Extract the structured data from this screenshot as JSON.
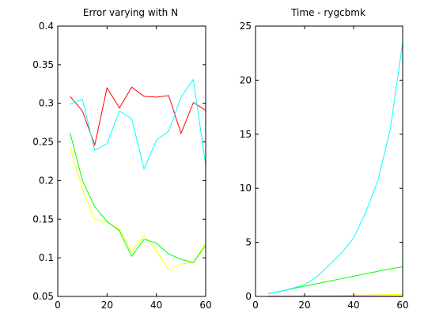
{
  "chart_data": [
    {
      "type": "line",
      "title": "Error varying with N",
      "xlabel": "",
      "ylabel": "",
      "xlim": [
        0,
        60
      ],
      "ylim": [
        0.05,
        0.4
      ],
      "xticks": [
        0,
        20,
        40,
        60
      ],
      "yticks": [
        0.05,
        0.1,
        0.15,
        0.2,
        0.25,
        0.3,
        0.35,
        0.4
      ],
      "yticklabels": [
        "0.05",
        "0.1",
        "0.15",
        "0.2",
        "0.25",
        "0.3",
        "0.35",
        "0.4"
      ],
      "grid": false,
      "x": [
        5,
        10,
        15,
        20,
        25,
        30,
        35,
        40,
        45,
        50,
        55,
        60
      ],
      "series": [
        {
          "color": "#ff0000",
          "values": [
            0.309,
            0.29,
            0.246,
            0.32,
            0.294,
            0.321,
            0.309,
            0.308,
            0.31,
            0.261,
            0.301,
            0.291
          ]
        },
        {
          "color": "#ffff00",
          "values": [
            0.243,
            0.189,
            0.15,
            0.146,
            0.137,
            0.108,
            0.129,
            0.109,
            0.084,
            0.092,
            0.094,
            0.119
          ]
        },
        {
          "color": "#00ff00",
          "values": [
            0.262,
            0.2,
            0.166,
            0.147,
            0.135,
            0.102,
            0.124,
            0.119,
            0.105,
            0.098,
            0.094,
            0.116
          ]
        },
        {
          "color": "#00ffff",
          "values": [
            0.299,
            0.305,
            0.239,
            0.248,
            0.29,
            0.28,
            0.215,
            0.252,
            0.264,
            0.308,
            0.331,
            0.22
          ]
        }
      ]
    },
    {
      "type": "line",
      "title": "Time - rygcbmk",
      "xlabel": "",
      "ylabel": "",
      "xlim": [
        0,
        60
      ],
      "ylim": [
        0,
        25
      ],
      "xticks": [
        0,
        20,
        40,
        60
      ],
      "yticks": [
        0,
        5,
        10,
        15,
        20,
        25
      ],
      "yticklabels": [
        "0",
        "5",
        "10",
        "15",
        "20",
        "25"
      ],
      "grid": false,
      "x": [
        5,
        10,
        15,
        20,
        25,
        30,
        35,
        40,
        45,
        50,
        55,
        60
      ],
      "series": [
        {
          "color": "#ff0000",
          "values": [
            0.01,
            0.01,
            0.01,
            0.01,
            0.01,
            0.01,
            0.01,
            0.01,
            0.01,
            0.01,
            0.01,
            0.01
          ]
        },
        {
          "color": "#ffff00",
          "values": [
            0.02,
            0.03,
            0.04,
            0.06,
            0.07,
            0.08,
            0.1,
            0.12,
            0.13,
            0.15,
            0.17,
            0.19
          ]
        },
        {
          "color": "#00ff00",
          "values": [
            0.25,
            0.48,
            0.71,
            0.95,
            1.18,
            1.41,
            1.64,
            1.87,
            2.1,
            2.33,
            2.55,
            2.75
          ]
        },
        {
          "color": "#00ffff",
          "values": [
            0.25,
            0.45,
            0.75,
            1.1,
            1.8,
            2.9,
            4.0,
            5.4,
            7.8,
            10.8,
            15.5,
            23.5
          ]
        },
        {
          "color": "#0000ff",
          "values": [
            0.005,
            0.005,
            0.005,
            0.005,
            0.005,
            0.005,
            0.005,
            0.005,
            0.005,
            0.005,
            0.005,
            0.005
          ]
        },
        {
          "color": "#ff00ff",
          "values": [
            0.005,
            0.005,
            0.005,
            0.005,
            0.005,
            0.005,
            0.005,
            0.005,
            0.005,
            0.005,
            0.005,
            0.005
          ]
        },
        {
          "color": "#000000",
          "values": [
            0.003,
            0.003,
            0.003,
            0.003,
            0.003,
            0.003,
            0.003,
            0.003,
            0.003,
            0.003,
            0.003,
            0.003
          ]
        }
      ]
    }
  ]
}
